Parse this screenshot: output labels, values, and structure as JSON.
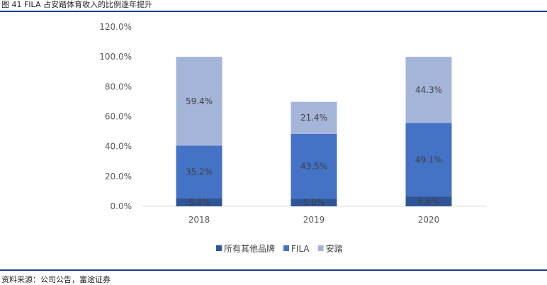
{
  "figure": {
    "title": "图 41 FILA 占安踏体育收入的比例逐年提升",
    "source": "资料来源：公司公告，富途证券"
  },
  "colors": {
    "rule": "#1f3a93",
    "other_brands": "#2f5597",
    "fila": "#4472c4",
    "anta": "#a5b4d9"
  },
  "chart_data": {
    "type": "bar",
    "stacked": true,
    "categories": [
      "2018",
      "2019",
      "2020"
    ],
    "series": [
      {
        "name": "所有其他品牌",
        "values": [
          5.4,
          5.0,
          6.6
        ],
        "labels": [
          "5.4%",
          "5.0%",
          "6.6%"
        ],
        "color": "#2f5597"
      },
      {
        "name": "FILA",
        "values": [
          35.2,
          43.5,
          49.1
        ],
        "labels": [
          "35.2%",
          "43.5%",
          "49.1%"
        ],
        "color": "#4472c4"
      },
      {
        "name": "安踏",
        "values": [
          59.4,
          21.4,
          44.3
        ],
        "labels": [
          "59.4%",
          "21.4%",
          "44.3%"
        ],
        "color": "#a5b4d9"
      }
    ],
    "ylim": [
      0,
      120
    ],
    "yticks": [
      "0.0%",
      "20.0%",
      "40.0%",
      "60.0%",
      "80.0%",
      "100.0%",
      "120.0%"
    ],
    "grid": false,
    "legend": "bottom"
  }
}
